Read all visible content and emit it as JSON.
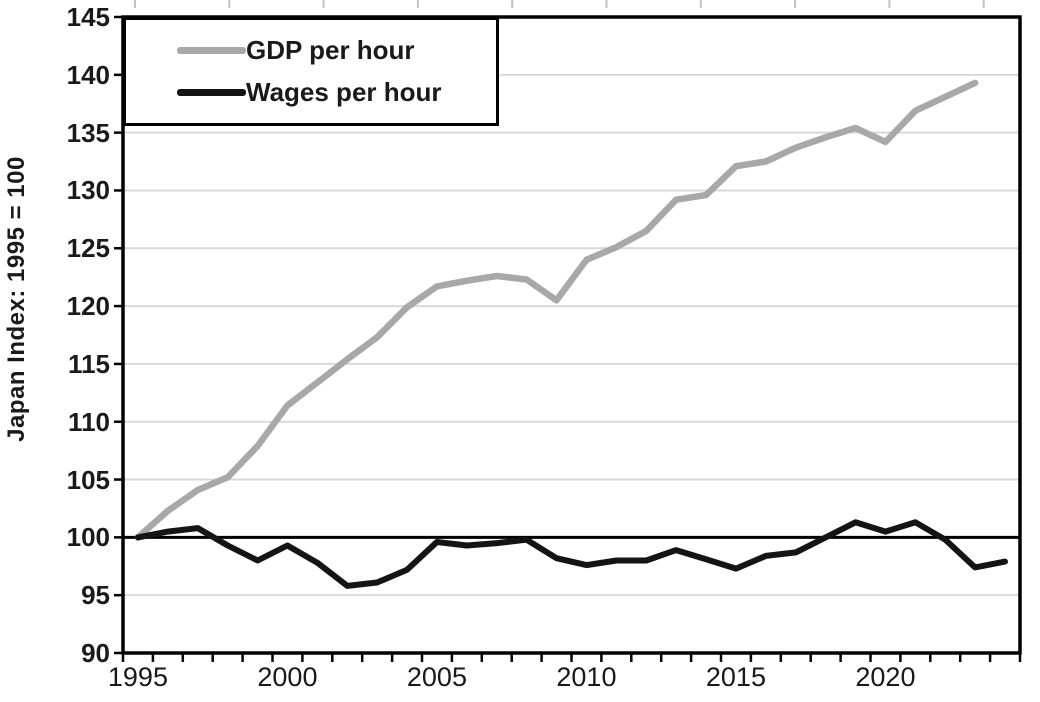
{
  "chart_data": {
    "type": "line",
    "title": "",
    "xlabel": "",
    "ylabel": "Japan Index: 1995 = 100",
    "ylim": [
      90,
      145
    ],
    "ytick_step": 5,
    "xlim": [
      1995,
      2024
    ],
    "x_tick_labels": [
      "1995",
      "2000",
      "2005",
      "2010",
      "2015",
      "2020"
    ],
    "grid": "horizontal",
    "legend_position": "top-left",
    "reference_line": 100,
    "series": [
      {
        "name": "GDP per hour",
        "color": "#a8a8a8",
        "x_start": 1995,
        "values": [
          100,
          102.3,
          104.1,
          105.2,
          107.9,
          111.4,
          113.4,
          115.4,
          117.3,
          119.9,
          121.7,
          122.2,
          122.6,
          122.3,
          120.5,
          124.0,
          125.1,
          126.5,
          129.2,
          129.6,
          132.1,
          132.5,
          133.7,
          134.6,
          135.4,
          134.2,
          136.9,
          138.1,
          139.3
        ]
      },
      {
        "name": "Wages per hour",
        "color": "#141414",
        "x_start": 1995,
        "values": [
          100,
          100.5,
          100.8,
          99.3,
          98.0,
          99.3,
          97.8,
          95.8,
          96.1,
          97.2,
          99.6,
          99.3,
          99.5,
          99.8,
          98.2,
          97.6,
          98.0,
          98.0,
          98.9,
          98.1,
          97.3,
          98.4,
          98.7,
          100.0,
          101.3,
          100.5,
          101.3,
          99.8,
          97.4,
          97.9
        ]
      }
    ],
    "colors": {
      "gridline": "#d9d9d9",
      "axis": "#000000",
      "reference_line": "#000000",
      "text": "#1a1a1a",
      "top_minor_tick": "#c2c2c2"
    }
  }
}
